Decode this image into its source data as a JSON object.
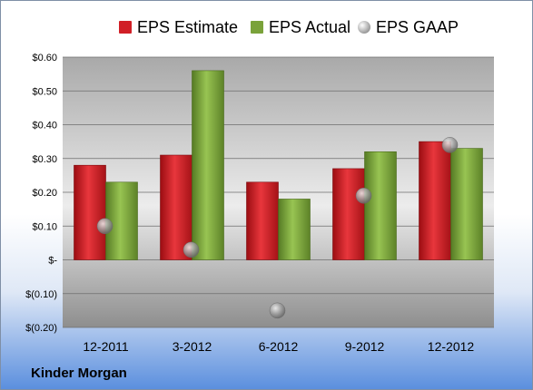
{
  "chart_data": {
    "type": "bar",
    "categories": [
      "12-2011",
      "3-2012",
      "6-2012",
      "9-2012",
      "12-2012"
    ],
    "series": [
      {
        "name": "EPS Estimate",
        "kind": "bar",
        "color": "#d11f26",
        "values": [
          0.28,
          0.31,
          0.23,
          0.27,
          0.35
        ]
      },
      {
        "name": "EPS Actual",
        "kind": "bar",
        "color": "#7aa23a",
        "values": [
          0.23,
          0.56,
          0.18,
          0.32,
          0.33
        ]
      },
      {
        "name": "EPS GAAP",
        "kind": "scatter",
        "color": "#9a9a9a",
        "values": [
          0.1,
          0.03,
          -0.15,
          0.19,
          0.34
        ]
      }
    ],
    "ylim": [
      -0.2,
      0.6
    ],
    "yticks": [
      0.6,
      0.5,
      0.4,
      0.3,
      0.2,
      0.1,
      0.0,
      -0.1,
      -0.2
    ],
    "ytick_labels": [
      "$0.60",
      "$0.50",
      "$0.40",
      "$0.30",
      "$0.20",
      "$0.10",
      "$-",
      "$(0.10)",
      "$(0.20)"
    ],
    "grid": true,
    "legend": "top"
  },
  "footer": {
    "company": "Kinder Morgan"
  }
}
